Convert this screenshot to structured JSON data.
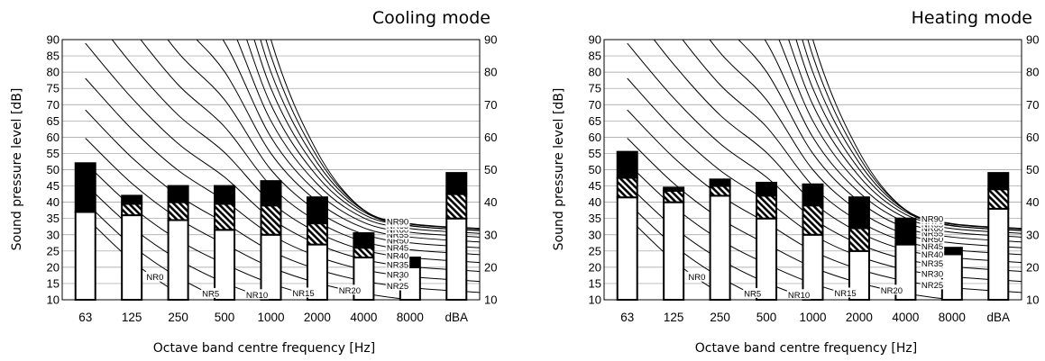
{
  "chart_data": [
    {
      "type": "bar",
      "title": "Cooling mode",
      "xlabel": "Octave band centre frequency [Hz]",
      "ylabel": "Sound pressure level [dB]",
      "ylim": [
        10,
        90
      ],
      "yticks": [
        10,
        15,
        20,
        25,
        30,
        35,
        40,
        45,
        50,
        55,
        60,
        65,
        70,
        75,
        80,
        85,
        90
      ],
      "y2ticks": [
        10,
        20,
        30,
        40,
        50,
        60,
        70,
        80,
        90
      ],
      "categories": [
        "63",
        "125",
        "250",
        "500",
        "1000",
        "2000",
        "4000",
        "8000",
        "dBA"
      ],
      "grid": true,
      "series": [
        {
          "name": "",
          "values": [
            27,
            26,
            24.5,
            21.5,
            20,
            17,
            13,
            10,
            25
          ]
        },
        {
          "name": "",
          "values": [
            0,
            3.5,
            5.5,
            8,
            9,
            6.5,
            3,
            0,
            7.5
          ]
        },
        {
          "name": "",
          "values": [
            15,
            2.5,
            5,
            5.5,
            7.5,
            8,
            4.5,
            3,
            6.5
          ]
        }
      ],
      "nr_curves": {
        "labels": [
          "NR0",
          "NR5",
          "NR10",
          "NR15",
          "NR20",
          "NR25",
          "NR30",
          "NR35",
          "NR40",
          "NR45",
          "NR50",
          "NR55",
          "NR60",
          "NR65",
          "NR70",
          "NR75",
          "NR80",
          "NR85",
          "NR90"
        ]
      }
    },
    {
      "type": "bar",
      "title": "Heating mode",
      "xlabel": "Octave band centre frequency [Hz]",
      "ylabel": "Sound pressure level [dB]",
      "ylim": [
        10,
        90
      ],
      "yticks": [
        10,
        15,
        20,
        25,
        30,
        35,
        40,
        45,
        50,
        55,
        60,
        65,
        70,
        75,
        80,
        85,
        90
      ],
      "y2ticks": [
        10,
        20,
        30,
        40,
        50,
        60,
        70,
        80,
        90
      ],
      "categories": [
        "63",
        "125",
        "250",
        "500",
        "1000",
        "2000",
        "4000",
        "8000",
        "dBA"
      ],
      "grid": true,
      "series": [
        {
          "name": "",
          "values": [
            31.5,
            30,
            32,
            25,
            20,
            15,
            17,
            14,
            28
          ]
        },
        {
          "name": "",
          "values": [
            6,
            3.5,
            3,
            7,
            9,
            7,
            0,
            0,
            6
          ]
        },
        {
          "name": "",
          "values": [
            8,
            1,
            2,
            4,
            6.5,
            9.5,
            8,
            2,
            5
          ]
        }
      ],
      "nr_curves": {
        "labels": [
          "NR0",
          "NR5",
          "NR10",
          "NR15",
          "NR20",
          "NR25",
          "NR30",
          "NR35",
          "NR40",
          "NR45",
          "NR50",
          "NR55",
          "NR60",
          "NR65",
          "NR70",
          "NR75",
          "NR80",
          "NR85",
          "NR90"
        ]
      }
    }
  ]
}
